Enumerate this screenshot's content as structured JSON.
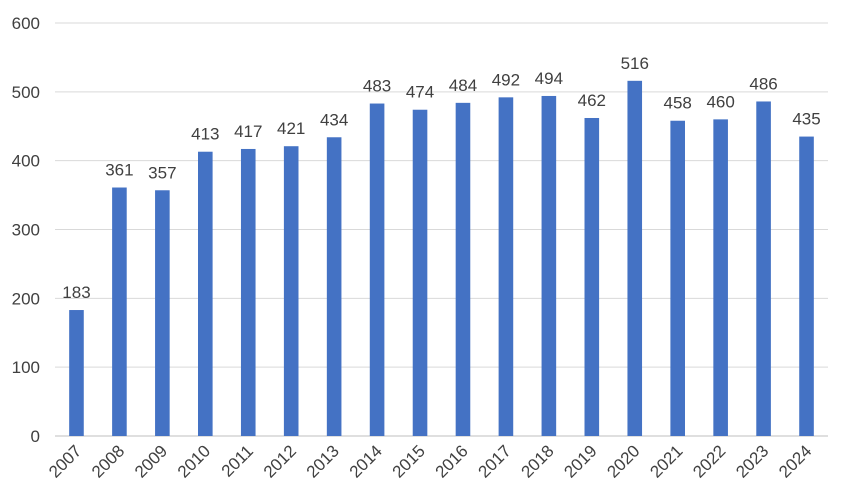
{
  "chart_data": {
    "type": "bar",
    "title": "",
    "xlabel": "",
    "ylabel": "",
    "categories": [
      "2007",
      "2008",
      "2009",
      "2010",
      "2011",
      "2012",
      "2013",
      "2014",
      "2015",
      "2016",
      "2017",
      "2018",
      "2019",
      "2020",
      "2021",
      "2022",
      "2023",
      "2024"
    ],
    "values": [
      183,
      361,
      357,
      413,
      417,
      421,
      434,
      483,
      474,
      484,
      492,
      494,
      462,
      516,
      458,
      460,
      486,
      435
    ],
    "ylim": [
      0,
      600
    ],
    "yticks": [
      0,
      100,
      200,
      300,
      400,
      500,
      600
    ],
    "grid": true,
    "legend": "none",
    "data_labels": true,
    "colors": {
      "bar": "#4472c4"
    }
  }
}
